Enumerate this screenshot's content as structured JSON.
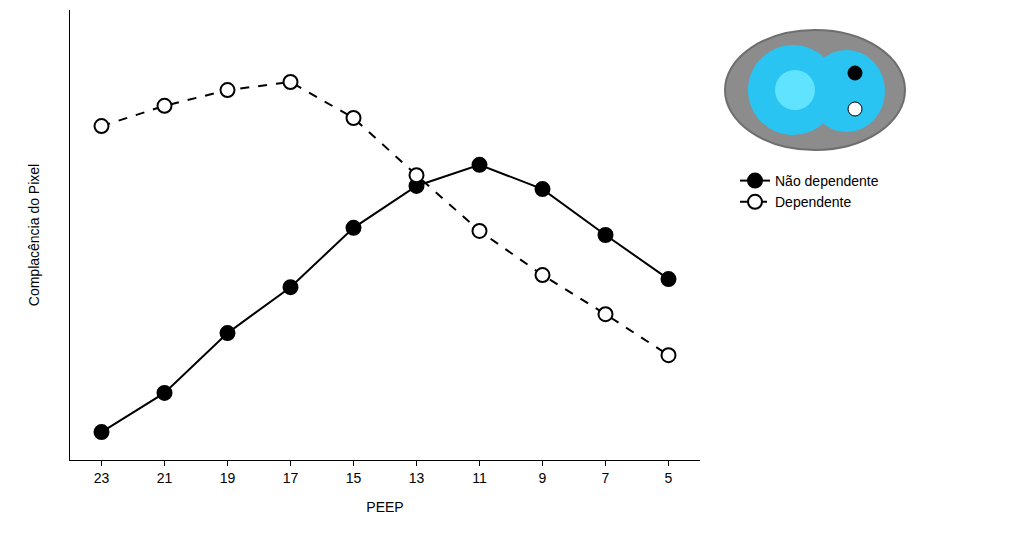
{
  "chart_data": {
    "type": "line",
    "x_label": "PEEP",
    "y_label": "Complacência do Pixel",
    "x": [
      23,
      21,
      19,
      17,
      15,
      13,
      11,
      9,
      7,
      5
    ],
    "series": [
      {
        "name": "Não dependente",
        "color": "#000000",
        "marker": "filled",
        "line_style": "solid",
        "values": [
          6.2,
          14.9,
          28.2,
          38.4,
          51.6,
          60.9,
          65.6,
          60.2,
          50.0,
          40.2
        ]
      },
      {
        "name": "Dependente",
        "color": "#000000",
        "marker": "open",
        "line_style": "dashed",
        "values": [
          74.2,
          78.7,
          82.2,
          84.0,
          76.0,
          63.3,
          50.9,
          41.1,
          32.4,
          23.3
        ]
      }
    ],
    "xlim": [
      24,
      4
    ],
    "xticks": [
      23,
      21,
      19,
      17,
      15,
      13,
      11,
      9,
      7,
      5
    ],
    "ylim": [
      0,
      100
    ],
    "tick_labels": "x",
    "grid": false,
    "legend": "right"
  }
}
